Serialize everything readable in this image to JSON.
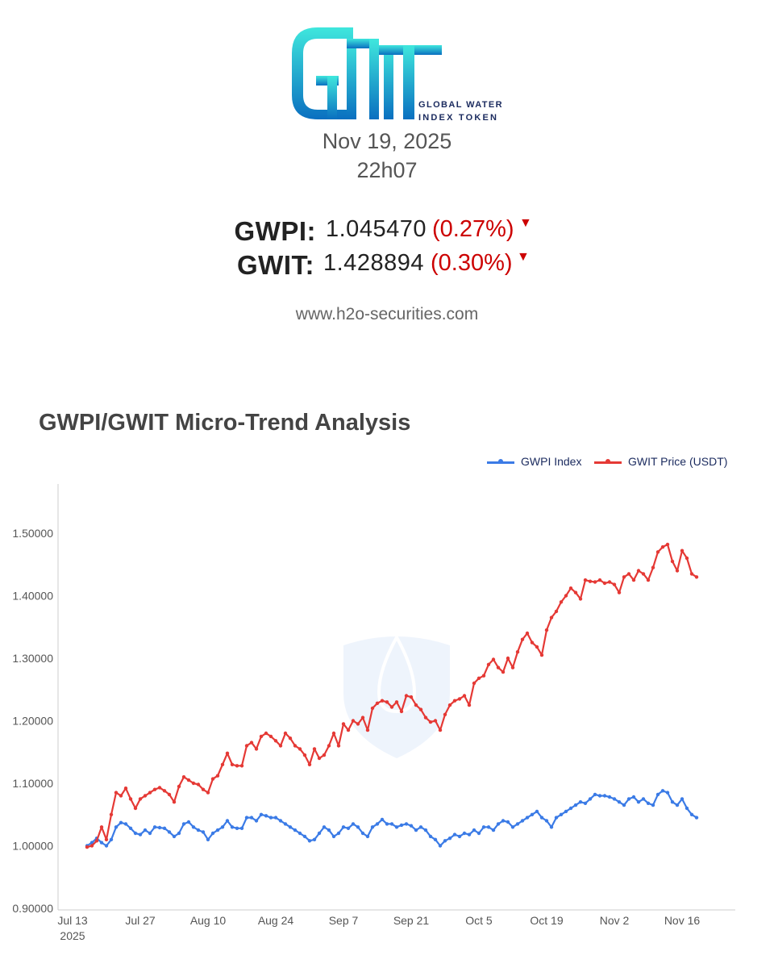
{
  "header": {
    "logo_text": "GWIT",
    "logo_subtitle_line1": "GLOBAL WATER",
    "logo_subtitle_line2": "INDEX TOKEN",
    "date": "Nov 19, 2025",
    "time": "22h07",
    "website": "www.h2o-securities.com"
  },
  "quotes": [
    {
      "label": "GWPI:",
      "value": "1.045470",
      "change": "(0.27%)",
      "direction": "down"
    },
    {
      "label": "GWIT:",
      "value": "1.428894",
      "change": "(0.30%)",
      "direction": "down"
    }
  ],
  "colors": {
    "gwpi": "#3b7be6",
    "gwit": "#e53935",
    "down": "#cc0000"
  },
  "chart_data": {
    "type": "line",
    "title": "GWPI/GWIT Micro-Trend Analysis",
    "legend_position": "top-right",
    "grid": false,
    "xlim": [
      "2025-07-10",
      "2025-11-27"
    ],
    "ylim": [
      0.9,
      1.58
    ],
    "y_ticks": [
      "1.50000",
      "1.40000",
      "1.30000",
      "1.20000",
      "1.10000",
      "1.00000",
      "0.90000"
    ],
    "y_tick_values": [
      1.5,
      1.4,
      1.3,
      1.2,
      1.1,
      1.0,
      0.9
    ],
    "x_ticks": [
      {
        "label": "Jul 13",
        "sub": "2025",
        "date": "2025-07-13"
      },
      {
        "label": "Jul 27",
        "sub": "",
        "date": "2025-07-27"
      },
      {
        "label": "Aug 10",
        "sub": "",
        "date": "2025-08-10"
      },
      {
        "label": "Aug 24",
        "sub": "",
        "date": "2025-08-24"
      },
      {
        "label": "Sep 7",
        "sub": "",
        "date": "2025-09-07"
      },
      {
        "label": "Sep 21",
        "sub": "",
        "date": "2025-09-21"
      },
      {
        "label": "Oct 5",
        "sub": "",
        "date": "2025-10-05"
      },
      {
        "label": "Oct 19",
        "sub": "",
        "date": "2025-10-19"
      },
      {
        "label": "Nov 2",
        "sub": "",
        "date": "2025-11-02"
      },
      {
        "label": "Nov 16",
        "sub": "",
        "date": "2025-11-16"
      }
    ],
    "series": [
      {
        "name": "GWPI Index",
        "color": "#3b7be6",
        "points": [
          [
            "2025-07-16",
            1.0
          ],
          [
            "2025-07-17",
            1.005
          ],
          [
            "2025-07-18",
            1.012
          ],
          [
            "2025-07-19",
            1.005
          ],
          [
            "2025-07-20",
            1.0
          ],
          [
            "2025-07-21",
            1.01
          ],
          [
            "2025-07-22",
            1.03
          ],
          [
            "2025-07-23",
            1.037
          ],
          [
            "2025-07-24",
            1.035
          ],
          [
            "2025-07-25",
            1.028
          ],
          [
            "2025-07-26",
            1.02
          ],
          [
            "2025-07-27",
            1.018
          ],
          [
            "2025-07-28",
            1.025
          ],
          [
            "2025-07-29",
            1.02
          ],
          [
            "2025-07-30",
            1.03
          ],
          [
            "2025-07-31",
            1.029
          ],
          [
            "2025-08-01",
            1.028
          ],
          [
            "2025-08-02",
            1.022
          ],
          [
            "2025-08-03",
            1.015
          ],
          [
            "2025-08-04",
            1.02
          ],
          [
            "2025-08-05",
            1.035
          ],
          [
            "2025-08-06",
            1.038
          ],
          [
            "2025-08-07",
            1.03
          ],
          [
            "2025-08-08",
            1.025
          ],
          [
            "2025-08-09",
            1.022
          ],
          [
            "2025-08-10",
            1.01
          ],
          [
            "2025-08-11",
            1.02
          ],
          [
            "2025-08-12",
            1.025
          ],
          [
            "2025-08-13",
            1.03
          ],
          [
            "2025-08-14",
            1.04
          ],
          [
            "2025-08-15",
            1.03
          ],
          [
            "2025-08-16",
            1.028
          ],
          [
            "2025-08-17",
            1.028
          ],
          [
            "2025-08-18",
            1.045
          ],
          [
            "2025-08-19",
            1.045
          ],
          [
            "2025-08-20",
            1.04
          ],
          [
            "2025-08-21",
            1.05
          ],
          [
            "2025-08-22",
            1.048
          ],
          [
            "2025-08-23",
            1.045
          ],
          [
            "2025-08-24",
            1.045
          ],
          [
            "2025-08-25",
            1.04
          ],
          [
            "2025-08-26",
            1.035
          ],
          [
            "2025-08-27",
            1.03
          ],
          [
            "2025-08-28",
            1.025
          ],
          [
            "2025-08-29",
            1.02
          ],
          [
            "2025-08-30",
            1.015
          ],
          [
            "2025-08-31",
            1.008
          ],
          [
            "2025-09-01",
            1.01
          ],
          [
            "2025-09-02",
            1.02
          ],
          [
            "2025-09-03",
            1.03
          ],
          [
            "2025-09-04",
            1.025
          ],
          [
            "2025-09-05",
            1.015
          ],
          [
            "2025-09-06",
            1.02
          ],
          [
            "2025-09-07",
            1.03
          ],
          [
            "2025-09-08",
            1.028
          ],
          [
            "2025-09-09",
            1.035
          ],
          [
            "2025-09-10",
            1.03
          ],
          [
            "2025-09-11",
            1.02
          ],
          [
            "2025-09-12",
            1.015
          ],
          [
            "2025-09-13",
            1.03
          ],
          [
            "2025-09-14",
            1.035
          ],
          [
            "2025-09-15",
            1.042
          ],
          [
            "2025-09-16",
            1.035
          ],
          [
            "2025-09-17",
            1.035
          ],
          [
            "2025-09-18",
            1.03
          ],
          [
            "2025-09-19",
            1.033
          ],
          [
            "2025-09-20",
            1.035
          ],
          [
            "2025-09-21",
            1.032
          ],
          [
            "2025-09-22",
            1.025
          ],
          [
            "2025-09-23",
            1.03
          ],
          [
            "2025-09-24",
            1.025
          ],
          [
            "2025-09-25",
            1.015
          ],
          [
            "2025-09-26",
            1.01
          ],
          [
            "2025-09-27",
            1.0
          ],
          [
            "2025-09-28",
            1.008
          ],
          [
            "2025-09-29",
            1.012
          ],
          [
            "2025-09-30",
            1.018
          ],
          [
            "2025-10-01",
            1.015
          ],
          [
            "2025-10-02",
            1.02
          ],
          [
            "2025-10-03",
            1.018
          ],
          [
            "2025-10-04",
            1.025
          ],
          [
            "2025-10-05",
            1.02
          ],
          [
            "2025-10-06",
            1.03
          ],
          [
            "2025-10-07",
            1.03
          ],
          [
            "2025-10-08",
            1.025
          ],
          [
            "2025-10-09",
            1.035
          ],
          [
            "2025-10-10",
            1.04
          ],
          [
            "2025-10-11",
            1.038
          ],
          [
            "2025-10-12",
            1.03
          ],
          [
            "2025-10-13",
            1.035
          ],
          [
            "2025-10-14",
            1.04
          ],
          [
            "2025-10-15",
            1.045
          ],
          [
            "2025-10-16",
            1.05
          ],
          [
            "2025-10-17",
            1.055
          ],
          [
            "2025-10-18",
            1.045
          ],
          [
            "2025-10-19",
            1.04
          ],
          [
            "2025-10-20",
            1.03
          ],
          [
            "2025-10-21",
            1.045
          ],
          [
            "2025-10-22",
            1.05
          ],
          [
            "2025-10-23",
            1.055
          ],
          [
            "2025-10-24",
            1.06
          ],
          [
            "2025-10-25",
            1.065
          ],
          [
            "2025-10-26",
            1.07
          ],
          [
            "2025-10-27",
            1.068
          ],
          [
            "2025-10-28",
            1.075
          ],
          [
            "2025-10-29",
            1.082
          ],
          [
            "2025-10-30",
            1.08
          ],
          [
            "2025-10-31",
            1.08
          ],
          [
            "2025-11-01",
            1.078
          ],
          [
            "2025-11-02",
            1.075
          ],
          [
            "2025-11-03",
            1.07
          ],
          [
            "2025-11-04",
            1.065
          ],
          [
            "2025-11-05",
            1.075
          ],
          [
            "2025-11-06",
            1.078
          ],
          [
            "2025-11-07",
            1.07
          ],
          [
            "2025-11-08",
            1.075
          ],
          [
            "2025-11-09",
            1.068
          ],
          [
            "2025-11-10",
            1.065
          ],
          [
            "2025-11-11",
            1.082
          ],
          [
            "2025-11-12",
            1.088
          ],
          [
            "2025-11-13",
            1.085
          ],
          [
            "2025-11-14",
            1.07
          ],
          [
            "2025-11-15",
            1.065
          ],
          [
            "2025-11-16",
            1.075
          ],
          [
            "2025-11-17",
            1.06
          ],
          [
            "2025-11-18",
            1.05
          ],
          [
            "2025-11-19",
            1.045
          ]
        ]
      },
      {
        "name": "GWIT Price (USDT)",
        "color": "#e53935",
        "points": [
          [
            "2025-07-16",
            0.998
          ],
          [
            "2025-07-17",
            1.0
          ],
          [
            "2025-07-18",
            1.008
          ],
          [
            "2025-07-19",
            1.03
          ],
          [
            "2025-07-20",
            1.01
          ],
          [
            "2025-07-21",
            1.05
          ],
          [
            "2025-07-22",
            1.085
          ],
          [
            "2025-07-23",
            1.08
          ],
          [
            "2025-07-24",
            1.092
          ],
          [
            "2025-07-25",
            1.075
          ],
          [
            "2025-07-26",
            1.06
          ],
          [
            "2025-07-27",
            1.075
          ],
          [
            "2025-07-28",
            1.08
          ],
          [
            "2025-07-29",
            1.085
          ],
          [
            "2025-07-30",
            1.09
          ],
          [
            "2025-07-31",
            1.093
          ],
          [
            "2025-08-01",
            1.088
          ],
          [
            "2025-08-02",
            1.082
          ],
          [
            "2025-08-03",
            1.07
          ],
          [
            "2025-08-04",
            1.095
          ],
          [
            "2025-08-05",
            1.11
          ],
          [
            "2025-08-06",
            1.105
          ],
          [
            "2025-08-07",
            1.1
          ],
          [
            "2025-08-08",
            1.098
          ],
          [
            "2025-08-09",
            1.09
          ],
          [
            "2025-08-10",
            1.085
          ],
          [
            "2025-08-11",
            1.107
          ],
          [
            "2025-08-12",
            1.112
          ],
          [
            "2025-08-13",
            1.13
          ],
          [
            "2025-08-14",
            1.148
          ],
          [
            "2025-08-15",
            1.13
          ],
          [
            "2025-08-16",
            1.128
          ],
          [
            "2025-08-17",
            1.128
          ],
          [
            "2025-08-18",
            1.16
          ],
          [
            "2025-08-19",
            1.165
          ],
          [
            "2025-08-20",
            1.155
          ],
          [
            "2025-08-21",
            1.175
          ],
          [
            "2025-08-22",
            1.18
          ],
          [
            "2025-08-23",
            1.175
          ],
          [
            "2025-08-24",
            1.168
          ],
          [
            "2025-08-25",
            1.16
          ],
          [
            "2025-08-26",
            1.18
          ],
          [
            "2025-08-27",
            1.172
          ],
          [
            "2025-08-28",
            1.16
          ],
          [
            "2025-08-29",
            1.155
          ],
          [
            "2025-08-30",
            1.145
          ],
          [
            "2025-08-31",
            1.13
          ],
          [
            "2025-09-01",
            1.155
          ],
          [
            "2025-09-02",
            1.14
          ],
          [
            "2025-09-03",
            1.145
          ],
          [
            "2025-09-04",
            1.16
          ],
          [
            "2025-09-05",
            1.18
          ],
          [
            "2025-09-06",
            1.16
          ],
          [
            "2025-09-07",
            1.195
          ],
          [
            "2025-09-08",
            1.185
          ],
          [
            "2025-09-09",
            1.2
          ],
          [
            "2025-09-10",
            1.195
          ],
          [
            "2025-09-11",
            1.205
          ],
          [
            "2025-09-12",
            1.185
          ],
          [
            "2025-09-13",
            1.22
          ],
          [
            "2025-09-14",
            1.228
          ],
          [
            "2025-09-15",
            1.232
          ],
          [
            "2025-09-16",
            1.23
          ],
          [
            "2025-09-17",
            1.222
          ],
          [
            "2025-09-18",
            1.23
          ],
          [
            "2025-09-19",
            1.215
          ],
          [
            "2025-09-20",
            1.24
          ],
          [
            "2025-09-21",
            1.238
          ],
          [
            "2025-09-22",
            1.225
          ],
          [
            "2025-09-23",
            1.218
          ],
          [
            "2025-09-24",
            1.205
          ],
          [
            "2025-09-25",
            1.198
          ],
          [
            "2025-09-26",
            1.2
          ],
          [
            "2025-09-27",
            1.185
          ],
          [
            "2025-09-28",
            1.21
          ],
          [
            "2025-09-29",
            1.225
          ],
          [
            "2025-09-30",
            1.232
          ],
          [
            "2025-10-01",
            1.235
          ],
          [
            "2025-10-02",
            1.24
          ],
          [
            "2025-10-03",
            1.225
          ],
          [
            "2025-10-04",
            1.26
          ],
          [
            "2025-10-05",
            1.268
          ],
          [
            "2025-10-06",
            1.272
          ],
          [
            "2025-10-07",
            1.29
          ],
          [
            "2025-10-08",
            1.298
          ],
          [
            "2025-10-09",
            1.285
          ],
          [
            "2025-10-10",
            1.278
          ],
          [
            "2025-10-11",
            1.3
          ],
          [
            "2025-10-12",
            1.285
          ],
          [
            "2025-10-13",
            1.31
          ],
          [
            "2025-10-14",
            1.33
          ],
          [
            "2025-10-15",
            1.34
          ],
          [
            "2025-10-16",
            1.325
          ],
          [
            "2025-10-17",
            1.318
          ],
          [
            "2025-10-18",
            1.305
          ],
          [
            "2025-10-19",
            1.345
          ],
          [
            "2025-10-20",
            1.365
          ],
          [
            "2025-10-21",
            1.375
          ],
          [
            "2025-10-22",
            1.39
          ],
          [
            "2025-10-23",
            1.4
          ],
          [
            "2025-10-24",
            1.412
          ],
          [
            "2025-10-25",
            1.405
          ],
          [
            "2025-10-26",
            1.395
          ],
          [
            "2025-10-27",
            1.425
          ],
          [
            "2025-10-28",
            1.423
          ],
          [
            "2025-10-29",
            1.422
          ],
          [
            "2025-10-30",
            1.425
          ],
          [
            "2025-10-31",
            1.42
          ],
          [
            "2025-11-01",
            1.422
          ],
          [
            "2025-11-02",
            1.418
          ],
          [
            "2025-11-03",
            1.405
          ],
          [
            "2025-11-04",
            1.43
          ],
          [
            "2025-11-05",
            1.435
          ],
          [
            "2025-11-06",
            1.425
          ],
          [
            "2025-11-07",
            1.44
          ],
          [
            "2025-11-08",
            1.435
          ],
          [
            "2025-11-09",
            1.425
          ],
          [
            "2025-11-10",
            1.445
          ],
          [
            "2025-11-11",
            1.47
          ],
          [
            "2025-11-12",
            1.478
          ],
          [
            "2025-11-13",
            1.482
          ],
          [
            "2025-11-14",
            1.455
          ],
          [
            "2025-11-15",
            1.44
          ],
          [
            "2025-11-16",
            1.472
          ],
          [
            "2025-11-17",
            1.46
          ],
          [
            "2025-11-18",
            1.435
          ],
          [
            "2025-11-19",
            1.43
          ]
        ]
      }
    ]
  }
}
